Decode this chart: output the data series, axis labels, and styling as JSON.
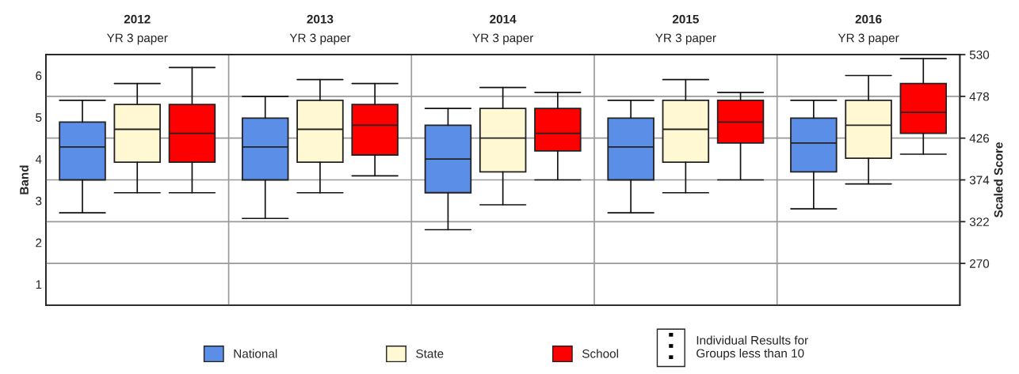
{
  "chart_data": {
    "type": "box",
    "categories": [
      "2012",
      "2013",
      "2014",
      "2015",
      "2016"
    ],
    "ylabel": "Band",
    "y2label": "Scaled Score",
    "ylim": [
      0.5,
      6.5
    ],
    "yticks": [
      1,
      2,
      3,
      4,
      5,
      6
    ],
    "y2lim": [
      218,
      530
    ],
    "y2ticks": [
      270,
      322,
      374,
      426,
      478,
      530
    ],
    "grid": true,
    "legend": "bottom",
    "series": [
      {
        "name": "National",
        "color": "#5b8ee6",
        "axis": "y2",
        "boxes": [
          {
            "low": 333,
            "q1": 374,
            "median": 415,
            "q3": 446,
            "high": 473
          },
          {
            "low": 326,
            "q1": 374,
            "median": 415,
            "q3": 451,
            "high": 478
          },
          {
            "low": 312,
            "q1": 358,
            "median": 400,
            "q3": 442,
            "high": 463
          },
          {
            "low": 333,
            "q1": 374,
            "median": 415,
            "q3": 451,
            "high": 473
          },
          {
            "low": 338,
            "q1": 384,
            "median": 420,
            "q3": 451,
            "high": 473
          }
        ]
      },
      {
        "name": "State",
        "color": "#fff8d2",
        "axis": "y2",
        "boxes": [
          {
            "low": 358,
            "q1": 396,
            "median": 437,
            "q3": 468,
            "high": 494
          },
          {
            "low": 358,
            "q1": 396,
            "median": 437,
            "q3": 473,
            "high": 499
          },
          {
            "low": 343,
            "q1": 384,
            "median": 426,
            "q3": 463,
            "high": 489
          },
          {
            "low": 358,
            "q1": 396,
            "median": 437,
            "q3": 473,
            "high": 499
          },
          {
            "low": 369,
            "q1": 401,
            "median": 442,
            "q3": 473,
            "high": 504
          }
        ]
      },
      {
        "name": "School",
        "color": "#ff0000",
        "axis": "y2",
        "boxes": [
          {
            "low": 358,
            "q1": 396,
            "median": 432,
            "q3": 468,
            "high": 514
          },
          {
            "low": 379,
            "q1": 405,
            "median": 442,
            "q3": 468,
            "high": 494
          },
          {
            "low": 374,
            "q1": 410,
            "median": 432,
            "q3": 463,
            "high": 483
          },
          {
            "low": 374,
            "q1": 420,
            "median": 446,
            "q3": 473,
            "high": 483
          },
          {
            "low": 406,
            "q1": 432,
            "median": 458,
            "q3": 494,
            "high": 525
          }
        ]
      }
    ],
    "annotations": [
      "YR 3 paper",
      "YR 3 paper",
      "YR 3 paper",
      "YR 3 paper",
      "YR 3 paper",
      "Individual Results for\nGroups less than 10"
    ]
  }
}
